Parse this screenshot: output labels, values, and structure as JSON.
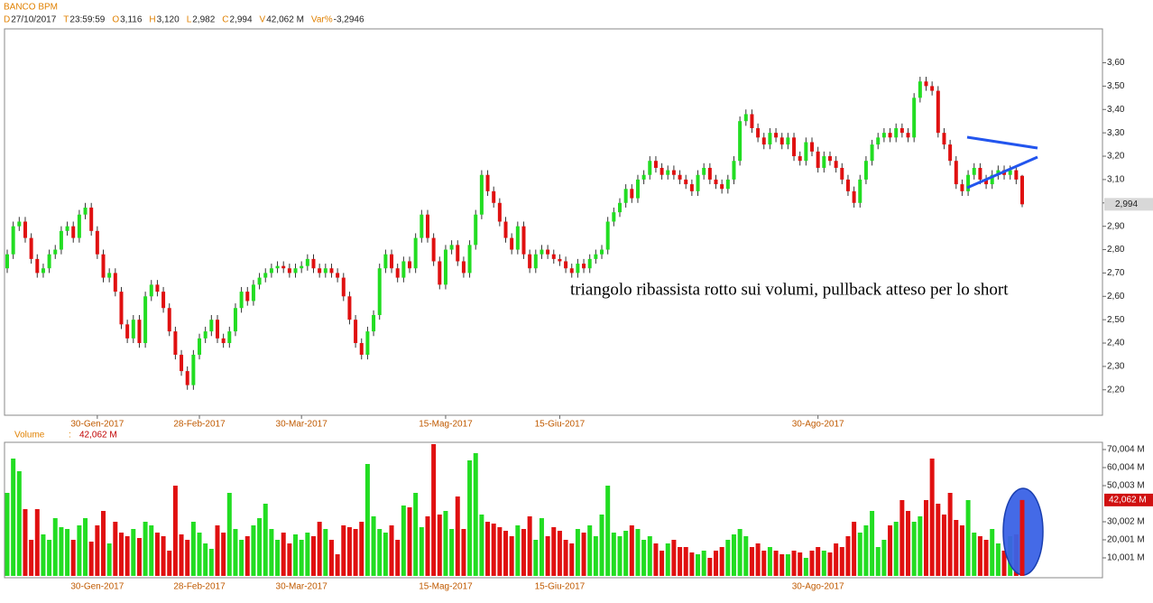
{
  "header": {
    "title": "BANCO BPM",
    "fields": [
      {
        "key": "D",
        "value": "27/10/2017"
      },
      {
        "key": "T",
        "value": "23:59:59"
      },
      {
        "key": "O",
        "value": "3,116"
      },
      {
        "key": "H",
        "value": "3,120"
      },
      {
        "key": "L",
        "value": "2,982"
      },
      {
        "key": "C",
        "value": "2,994"
      },
      {
        "key": "V",
        "value": "42,062 M"
      },
      {
        "key": "Var%",
        "value": "-3,2946"
      }
    ]
  },
  "chart_data": [
    {
      "type": "candlestick",
      "up_color": "#22dd22",
      "down_color": "#e01010",
      "annotation": "triangolo ribassista rotto sui volumi, pullback atteso per lo short",
      "ylim": [
        2.091,
        3.745
      ],
      "yticks": [
        {
          "value": 2.2,
          "label": "2,20"
        },
        {
          "value": 2.3,
          "label": "2,30"
        },
        {
          "value": 2.4,
          "label": "2,40"
        },
        {
          "value": 2.5,
          "label": "2,50"
        },
        {
          "value": 2.6,
          "label": "2,60"
        },
        {
          "value": 2.7,
          "label": "2,70"
        },
        {
          "value": 2.8,
          "label": "2,80"
        },
        {
          "value": 2.9,
          "label": "2,90"
        },
        {
          "value": 3.0,
          "label": "3,00"
        },
        {
          "value": 3.1,
          "label": "3,10"
        },
        {
          "value": 3.2,
          "label": "3,20"
        },
        {
          "value": 3.3,
          "label": "3,30"
        },
        {
          "value": 3.4,
          "label": "3,40"
        },
        {
          "value": 3.5,
          "label": "3,50"
        },
        {
          "value": 3.6,
          "label": "3,60"
        }
      ],
      "xticks": [
        {
          "value": 15,
          "label": "30-Gen-2017"
        },
        {
          "value": 32,
          "label": "28-Feb-2017"
        },
        {
          "value": 49,
          "label": "30-Mar-2017"
        },
        {
          "value": 73,
          "label": "15-Mag-2017"
        },
        {
          "value": 92,
          "label": "15-Giu-2017"
        },
        {
          "value": 135,
          "label": "30-Ago-2017"
        }
      ],
      "ohlc": [
        [
          2.72,
          2.8,
          2.7,
          2.78
        ],
        [
          2.78,
          2.92,
          2.76,
          2.9
        ],
        [
          2.9,
          2.94,
          2.88,
          2.92
        ],
        [
          2.92,
          2.94,
          2.83,
          2.85
        ],
        [
          2.85,
          2.87,
          2.74,
          2.76
        ],
        [
          2.76,
          2.78,
          2.68,
          2.7
        ],
        [
          2.7,
          2.74,
          2.68,
          2.72
        ],
        [
          2.72,
          2.8,
          2.7,
          2.78
        ],
        [
          2.78,
          2.82,
          2.76,
          2.8
        ],
        [
          2.8,
          2.9,
          2.78,
          2.88
        ],
        [
          2.88,
          2.92,
          2.86,
          2.9
        ],
        [
          2.9,
          2.92,
          2.83,
          2.85
        ],
        [
          2.85,
          2.97,
          2.83,
          2.95
        ],
        [
          2.95,
          3.0,
          2.93,
          2.98
        ],
        [
          2.98,
          3.0,
          2.86,
          2.88
        ],
        [
          2.88,
          2.9,
          2.76,
          2.78
        ],
        [
          2.78,
          2.8,
          2.66,
          2.68
        ],
        [
          2.68,
          2.72,
          2.66,
          2.7
        ],
        [
          2.7,
          2.72,
          2.6,
          2.62
        ],
        [
          2.62,
          2.64,
          2.46,
          2.48
        ],
        [
          2.48,
          2.5,
          2.4,
          2.42
        ],
        [
          2.42,
          2.52,
          2.4,
          2.5
        ],
        [
          2.5,
          2.52,
          2.38,
          2.4
        ],
        [
          2.4,
          2.62,
          2.38,
          2.6
        ],
        [
          2.6,
          2.67,
          2.58,
          2.65
        ],
        [
          2.65,
          2.67,
          2.6,
          2.62
        ],
        [
          2.62,
          2.64,
          2.53,
          2.55
        ],
        [
          2.55,
          2.57,
          2.43,
          2.45
        ],
        [
          2.45,
          2.47,
          2.33,
          2.35
        ],
        [
          2.35,
          2.37,
          2.26,
          2.28
        ],
        [
          2.28,
          2.3,
          2.2,
          2.22
        ],
        [
          2.22,
          2.37,
          2.2,
          2.35
        ],
        [
          2.35,
          2.44,
          2.33,
          2.42
        ],
        [
          2.42,
          2.47,
          2.4,
          2.45
        ],
        [
          2.45,
          2.52,
          2.43,
          2.5
        ],
        [
          2.5,
          2.52,
          2.4,
          2.42
        ],
        [
          2.42,
          2.44,
          2.38,
          2.4
        ],
        [
          2.4,
          2.47,
          2.38,
          2.45
        ],
        [
          2.45,
          2.57,
          2.43,
          2.55
        ],
        [
          2.55,
          2.64,
          2.53,
          2.62
        ],
        [
          2.62,
          2.64,
          2.56,
          2.58
        ],
        [
          2.58,
          2.67,
          2.56,
          2.65
        ],
        [
          2.65,
          2.7,
          2.63,
          2.68
        ],
        [
          2.68,
          2.72,
          2.66,
          2.7
        ],
        [
          2.7,
          2.74,
          2.68,
          2.72
        ],
        [
          2.72,
          2.75,
          2.7,
          2.73
        ],
        [
          2.73,
          2.75,
          2.7,
          2.72
        ],
        [
          2.72,
          2.74,
          2.68,
          2.7
        ],
        [
          2.7,
          2.74,
          2.68,
          2.72
        ],
        [
          2.72,
          2.75,
          2.7,
          2.73
        ],
        [
          2.73,
          2.78,
          2.71,
          2.76
        ],
        [
          2.76,
          2.78,
          2.7,
          2.72
        ],
        [
          2.72,
          2.74,
          2.68,
          2.7
        ],
        [
          2.7,
          2.74,
          2.68,
          2.72
        ],
        [
          2.72,
          2.74,
          2.68,
          2.7
        ],
        [
          2.7,
          2.72,
          2.66,
          2.68
        ],
        [
          2.68,
          2.7,
          2.58,
          2.6
        ],
        [
          2.6,
          2.62,
          2.48,
          2.5
        ],
        [
          2.5,
          2.52,
          2.38,
          2.4
        ],
        [
          2.4,
          2.42,
          2.33,
          2.35
        ],
        [
          2.35,
          2.47,
          2.33,
          2.45
        ],
        [
          2.45,
          2.54,
          2.43,
          2.52
        ],
        [
          2.52,
          2.74,
          2.5,
          2.72
        ],
        [
          2.72,
          2.8,
          2.7,
          2.78
        ],
        [
          2.78,
          2.8,
          2.7,
          2.72
        ],
        [
          2.72,
          2.74,
          2.66,
          2.68
        ],
        [
          2.68,
          2.77,
          2.66,
          2.75
        ],
        [
          2.75,
          2.77,
          2.7,
          2.72
        ],
        [
          2.72,
          2.87,
          2.7,
          2.85
        ],
        [
          2.85,
          2.97,
          2.83,
          2.95
        ],
        [
          2.95,
          2.97,
          2.83,
          2.85
        ],
        [
          2.85,
          2.87,
          2.73,
          2.75
        ],
        [
          2.75,
          2.77,
          2.63,
          2.65
        ],
        [
          2.65,
          2.82,
          2.63,
          2.8
        ],
        [
          2.8,
          2.84,
          2.78,
          2.82
        ],
        [
          2.82,
          2.84,
          2.73,
          2.75
        ],
        [
          2.75,
          2.77,
          2.68,
          2.7
        ],
        [
          2.7,
          2.84,
          2.68,
          2.82
        ],
        [
          2.82,
          2.97,
          2.8,
          2.95
        ],
        [
          2.95,
          3.14,
          2.93,
          3.12
        ],
        [
          3.12,
          3.14,
          3.03,
          3.05
        ],
        [
          3.05,
          3.07,
          2.98,
          3.0
        ],
        [
          3.0,
          3.02,
          2.9,
          2.92
        ],
        [
          2.92,
          2.94,
          2.83,
          2.85
        ],
        [
          2.85,
          2.87,
          2.78,
          2.8
        ],
        [
          2.8,
          2.92,
          2.78,
          2.9
        ],
        [
          2.9,
          2.92,
          2.76,
          2.78
        ],
        [
          2.78,
          2.8,
          2.7,
          2.72
        ],
        [
          2.72,
          2.8,
          2.7,
          2.78
        ],
        [
          2.78,
          2.82,
          2.76,
          2.8
        ],
        [
          2.8,
          2.82,
          2.76,
          2.78
        ],
        [
          2.78,
          2.8,
          2.74,
          2.76
        ],
        [
          2.76,
          2.78,
          2.73,
          2.75
        ],
        [
          2.75,
          2.77,
          2.7,
          2.72
        ],
        [
          2.72,
          2.74,
          2.68,
          2.7
        ],
        [
          2.7,
          2.76,
          2.68,
          2.74
        ],
        [
          2.74,
          2.76,
          2.7,
          2.72
        ],
        [
          2.72,
          2.78,
          2.7,
          2.76
        ],
        [
          2.76,
          2.8,
          2.74,
          2.78
        ],
        [
          2.78,
          2.82,
          2.76,
          2.8
        ],
        [
          2.8,
          2.94,
          2.78,
          2.92
        ],
        [
          2.92,
          2.98,
          2.9,
          2.96
        ],
        [
          2.96,
          3.02,
          2.94,
          3.0
        ],
        [
          3.0,
          3.08,
          2.98,
          3.06
        ],
        [
          3.06,
          3.08,
          3.0,
          3.02
        ],
        [
          3.02,
          3.12,
          3.0,
          3.1
        ],
        [
          3.1,
          3.14,
          3.08,
          3.12
        ],
        [
          3.12,
          3.2,
          3.1,
          3.18
        ],
        [
          3.18,
          3.2,
          3.13,
          3.15
        ],
        [
          3.15,
          3.17,
          3.1,
          3.12
        ],
        [
          3.12,
          3.16,
          3.1,
          3.14
        ],
        [
          3.14,
          3.16,
          3.1,
          3.12
        ],
        [
          3.12,
          3.14,
          3.08,
          3.1
        ],
        [
          3.1,
          3.12,
          3.06,
          3.08
        ],
        [
          3.08,
          3.1,
          3.03,
          3.05
        ],
        [
          3.05,
          3.14,
          3.03,
          3.12
        ],
        [
          3.12,
          3.17,
          3.1,
          3.15
        ],
        [
          3.15,
          3.17,
          3.08,
          3.1
        ],
        [
          3.1,
          3.12,
          3.06,
          3.08
        ],
        [
          3.08,
          3.1,
          3.04,
          3.06
        ],
        [
          3.06,
          3.12,
          3.04,
          3.1
        ],
        [
          3.1,
          3.2,
          3.08,
          3.18
        ],
        [
          3.18,
          3.37,
          3.16,
          3.35
        ],
        [
          3.35,
          3.4,
          3.33,
          3.38
        ],
        [
          3.38,
          3.4,
          3.3,
          3.32
        ],
        [
          3.32,
          3.34,
          3.26,
          3.28
        ],
        [
          3.28,
          3.3,
          3.23,
          3.25
        ],
        [
          3.25,
          3.32,
          3.23,
          3.3
        ],
        [
          3.3,
          3.32,
          3.26,
          3.28
        ],
        [
          3.28,
          3.3,
          3.23,
          3.25
        ],
        [
          3.25,
          3.3,
          3.23,
          3.28
        ],
        [
          3.28,
          3.3,
          3.18,
          3.2
        ],
        [
          3.2,
          3.22,
          3.16,
          3.18
        ],
        [
          3.18,
          3.28,
          3.16,
          3.26
        ],
        [
          3.26,
          3.28,
          3.2,
          3.22
        ],
        [
          3.22,
          3.24,
          3.13,
          3.15
        ],
        [
          3.15,
          3.22,
          3.13,
          3.2
        ],
        [
          3.2,
          3.22,
          3.16,
          3.18
        ],
        [
          3.18,
          3.2,
          3.13,
          3.15
        ],
        [
          3.15,
          3.17,
          3.08,
          3.1
        ],
        [
          3.1,
          3.12,
          3.03,
          3.05
        ],
        [
          3.05,
          3.07,
          2.98,
          3.0
        ],
        [
          3.0,
          3.12,
          2.98,
          3.1
        ],
        [
          3.1,
          3.2,
          3.08,
          3.18
        ],
        [
          3.18,
          3.27,
          3.16,
          3.25
        ],
        [
          3.25,
          3.3,
          3.23,
          3.28
        ],
        [
          3.28,
          3.32,
          3.26,
          3.3
        ],
        [
          3.3,
          3.32,
          3.26,
          3.28
        ],
        [
          3.28,
          3.34,
          3.26,
          3.32
        ],
        [
          3.32,
          3.34,
          3.28,
          3.3
        ],
        [
          3.3,
          3.32,
          3.26,
          3.28
        ],
        [
          3.28,
          3.47,
          3.26,
          3.45
        ],
        [
          3.45,
          3.54,
          3.43,
          3.52
        ],
        [
          3.52,
          3.54,
          3.48,
          3.5
        ],
        [
          3.5,
          3.52,
          3.46,
          3.48
        ],
        [
          3.48,
          3.5,
          3.28,
          3.3
        ],
        [
          3.3,
          3.32,
          3.23,
          3.25
        ],
        [
          3.25,
          3.27,
          3.16,
          3.18
        ],
        [
          3.18,
          3.2,
          3.06,
          3.08
        ],
        [
          3.08,
          3.1,
          3.03,
          3.05
        ],
        [
          3.05,
          3.14,
          3.03,
          3.12
        ],
        [
          3.12,
          3.17,
          3.1,
          3.15
        ],
        [
          3.15,
          3.17,
          3.08,
          3.1
        ],
        [
          3.1,
          3.12,
          3.06,
          3.08
        ],
        [
          3.08,
          3.14,
          3.06,
          3.12
        ],
        [
          3.12,
          3.16,
          3.1,
          3.14
        ],
        [
          3.14,
          3.16,
          3.1,
          3.12
        ],
        [
          3.12,
          3.16,
          3.1,
          3.14
        ],
        [
          3.14,
          3.16,
          3.08,
          3.1
        ],
        [
          3.116,
          3.12,
          2.982,
          2.994
        ]
      ]
    },
    {
      "type": "volume",
      "title": "Volume",
      "separator": ":",
      "ylim": [
        0,
        74
      ],
      "yticks": [
        {
          "value": 10.001,
          "label": "10,001 M"
        },
        {
          "value": 20.001,
          "label": "20,001 M"
        },
        {
          "value": 30.002,
          "label": "30,002 M"
        },
        {
          "value": 50.003,
          "label": "50,003 M"
        },
        {
          "value": 60.004,
          "label": "60,004 M"
        },
        {
          "value": 70.004,
          "label": "70,004 M"
        }
      ],
      "values": [
        46,
        65,
        58,
        37,
        20,
        37,
        23,
        20,
        32,
        27,
        26,
        20,
        28,
        32,
        19,
        28,
        36,
        18,
        30,
        24,
        22,
        26,
        21,
        30,
        28,
        24,
        22,
        14,
        50,
        23,
        20,
        30,
        24,
        18,
        15,
        28,
        24,
        46,
        26,
        20,
        22,
        28,
        32,
        40,
        26,
        20,
        24,
        18,
        23,
        20,
        24,
        22,
        30,
        26,
        20,
        12,
        28,
        27,
        26,
        30,
        62,
        33,
        26,
        24,
        28,
        20,
        39,
        38,
        46,
        27,
        33,
        73,
        34,
        36,
        26,
        44,
        26,
        64,
        68,
        34,
        30,
        29,
        27,
        25,
        22,
        28,
        26,
        33,
        20,
        32,
        22,
        27,
        25,
        20,
        18,
        26,
        24,
        28,
        22,
        34,
        50,
        24,
        22,
        25,
        28,
        26,
        20,
        22,
        18,
        14,
        18,
        20,
        16,
        16,
        13,
        12,
        14,
        10,
        14,
        16,
        20,
        23,
        26,
        22,
        16,
        18,
        14,
        16,
        14,
        12,
        12,
        14,
        13,
        10,
        14,
        16,
        14,
        13,
        18,
        16,
        22,
        30,
        24,
        28,
        36,
        16,
        20,
        28,
        30,
        42,
        36,
        30,
        33,
        42,
        65,
        40,
        34,
        46,
        31,
        28,
        42,
        24,
        22,
        20,
        26,
        18,
        14,
        22,
        23,
        42.062
      ]
    }
  ]
}
